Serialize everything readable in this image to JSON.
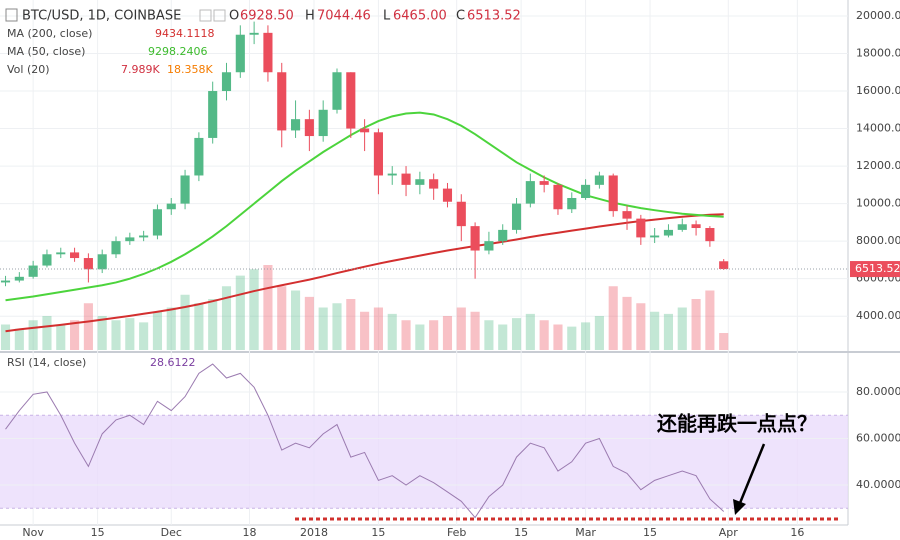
{
  "chart_data": [
    {
      "type": "candlestick",
      "title": "BTC/USD, 1D, COINBASE",
      "quote_keys": [
        "O",
        "H",
        "L",
        "C"
      ],
      "open_label": "6928.50",
      "low_label": "6465.00",
      "up_color": "#53b987",
      "down_color": "#eb4d5c",
      "x": [
        -6,
        -3,
        0,
        3,
        6,
        9,
        12,
        15,
        18,
        21,
        24,
        27,
        30,
        33,
        36,
        39,
        42,
        45,
        48,
        51,
        54,
        57,
        60,
        63,
        66,
        69,
        72,
        75,
        78,
        81,
        84,
        87,
        90,
        93,
        96,
        99,
        102,
        105,
        108,
        111,
        114,
        117,
        120,
        123,
        126,
        129,
        132,
        135,
        138,
        141,
        144,
        147,
        150
      ],
      "open": [
        5800,
        5900,
        6100,
        6700,
        7300,
        7400,
        7100,
        6500,
        7300,
        8000,
        8200,
        8300,
        9700,
        10000,
        11500,
        13500,
        16000,
        17000,
        19000,
        19100,
        17000,
        13900,
        14500,
        13600,
        15000,
        17000,
        14000,
        13800,
        11500,
        11600,
        11000,
        11300,
        10800,
        10100,
        8800,
        7500,
        8000,
        8600,
        10000,
        11200,
        11000,
        9700,
        10300,
        11000,
        11500,
        9600,
        9200,
        8200,
        8300,
        8600,
        8900,
        8700,
        6928.5
      ],
      "high": [
        6150,
        6350,
        6950,
        7550,
        7650,
        7650,
        7350,
        7550,
        8250,
        8450,
        8550,
        9950,
        10300,
        11800,
        13800,
        16500,
        17500,
        19500,
        19700,
        19500,
        17500,
        15500,
        15000,
        15500,
        17200,
        17000,
        14500,
        14000,
        12000,
        12000,
        11700,
        11600,
        11100,
        10500,
        9000,
        8500,
        8900,
        10300,
        11600,
        11500,
        11100,
        10600,
        11300,
        11700,
        11600,
        9900,
        9400,
        8700,
        8900,
        9200,
        9100,
        8800,
        7044.46
      ],
      "low": [
        5600,
        5800,
        6000,
        6600,
        7100,
        6900,
        5800,
        6300,
        7100,
        7800,
        8000,
        8100,
        9400,
        9700,
        11200,
        13200,
        15500,
        16700,
        18500,
        16500,
        13000,
        13500,
        12800,
        13300,
        14800,
        13500,
        12800,
        10500,
        11000,
        10400,
        10500,
        10200,
        9800,
        8000,
        6000,
        7300,
        7800,
        8400,
        9800,
        10600,
        9400,
        9500,
        10200,
        10800,
        9300,
        8600,
        7800,
        7900,
        8200,
        8500,
        8300,
        7700,
        6465
      ],
      "close": [
        5900,
        6100,
        6700,
        7300,
        7400,
        7100,
        6500,
        7300,
        8000,
        8200,
        8300,
        9700,
        10000,
        11500,
        13500,
        16000,
        17000,
        19000,
        19100,
        17000,
        13900,
        14500,
        13600,
        15000,
        17000,
        14000,
        13800,
        11500,
        11600,
        11000,
        11300,
        10800,
        10100,
        8800,
        7500,
        8000,
        8600,
        10000,
        11200,
        11000,
        9700,
        10300,
        11000,
        11500,
        9600,
        9200,
        8200,
        8300,
        8600,
        8900,
        8700,
        8000,
        6513.52
      ],
      "series": [
        {
          "name": "MA (200, close)",
          "color": "#d32f2f",
          "values": [
            3200,
            3300,
            3380,
            3460,
            3540,
            3630,
            3720,
            3820,
            3920,
            4020,
            4130,
            4240,
            4360,
            4490,
            4640,
            4800,
            4980,
            5160,
            5340,
            5500,
            5650,
            5800,
            5950,
            6120,
            6300,
            6470,
            6640,
            6800,
            6950,
            7090,
            7230,
            7370,
            7500,
            7620,
            7740,
            7850,
            7970,
            8090,
            8220,
            8340,
            8450,
            8560,
            8670,
            8780,
            8880,
            8980,
            9070,
            9150,
            9230,
            9300,
            9360,
            9410,
            9434.1118
          ]
        },
        {
          "name": "MA (50, close)",
          "color": "#4cd43c",
          "values": [
            4850,
            4950,
            5050,
            5170,
            5290,
            5410,
            5530,
            5650,
            5800,
            6000,
            6250,
            6550,
            6900,
            7300,
            7750,
            8250,
            8800,
            9400,
            10000,
            10600,
            11200,
            11750,
            12250,
            12750,
            13200,
            13650,
            14050,
            14400,
            14650,
            14800,
            14850,
            14750,
            14500,
            14150,
            13700,
            13200,
            12700,
            12200,
            11800,
            11400,
            11050,
            10750,
            10450,
            10250,
            10050,
            9900,
            9760,
            9650,
            9550,
            9460,
            9400,
            9340,
            9298.2406
          ]
        }
      ],
      "volume": {
        "name": "Vol (20)",
        "values": [
          12,
          10,
          14,
          16,
          12,
          14,
          22,
          16,
          14,
          15,
          13,
          18,
          20,
          26,
          22,
          24,
          30,
          35,
          38,
          40,
          30,
          28,
          25,
          20,
          22,
          24,
          18,
          20,
          17,
          14,
          12,
          14,
          16,
          20,
          18,
          14,
          12,
          15,
          17,
          14,
          12,
          11,
          13,
          16,
          30,
          25,
          22,
          18,
          17,
          20,
          24,
          28,
          7.989
        ],
        "last_label": "7.989K",
        "ma_label": "18.358K",
        "ma_color": "#f57c00"
      },
      "ylim": [
        2200,
        20850
      ],
      "yticks": [
        {
          "value": 4000,
          "label": "4000.00"
        },
        {
          "value": 6000,
          "label": "6000.00"
        },
        {
          "value": 8000,
          "label": "8000.00"
        },
        {
          "value": 10000,
          "label": "10000.00"
        },
        {
          "value": 12000,
          "label": "12000.00"
        },
        {
          "value": 14000,
          "label": "14000.00"
        },
        {
          "value": 16000,
          "label": "16000.00"
        },
        {
          "value": 18000,
          "label": "18000.00"
        },
        {
          "value": 20000,
          "label": "20000.00"
        }
      ],
      "xlim": [
        -7.2,
        177
      ],
      "xticks": [
        {
          "value": 0,
          "label": "Nov"
        },
        {
          "value": 14,
          "label": "15"
        },
        {
          "value": 30,
          "label": "Dec"
        },
        {
          "value": 47,
          "label": "18"
        },
        {
          "value": 61,
          "label": "2018"
        },
        {
          "value": 75,
          "label": "15"
        },
        {
          "value": 92,
          "label": "Feb"
        },
        {
          "value": 106,
          "label": "15"
        },
        {
          "value": 120,
          "label": "Mar"
        },
        {
          "value": 134,
          "label": "15"
        },
        {
          "value": 151,
          "label": "Apr"
        },
        {
          "value": 166,
          "label": "16"
        }
      ],
      "grid": true
    },
    {
      "type": "line",
      "name": "RSI (14, close)",
      "color": "#9b7bb0",
      "values": [
        64,
        72,
        79,
        80,
        70,
        58,
        48,
        62,
        68,
        70,
        66,
        76,
        72,
        78,
        88,
        92,
        86,
        88,
        82,
        70,
        55,
        58,
        56,
        62,
        66,
        52,
        54,
        42,
        44,
        40,
        44,
        41,
        37,
        33,
        26,
        35,
        40,
        52,
        58,
        56,
        46,
        50,
        58,
        60,
        48,
        45,
        38,
        42,
        44,
        46,
        44,
        34,
        28.6122
      ],
      "band": [
        30,
        70
      ],
      "band_color": "#eadcfb",
      "ylim": [
        22.8,
        95.9
      ],
      "yticks": [
        {
          "value": 40,
          "label": "40.0000"
        },
        {
          "value": 60,
          "label": "60.0000"
        },
        {
          "value": 80,
          "label": "80.0000"
        }
      ],
      "annotation": "还能再跌一点点？"
    }
  ]
}
